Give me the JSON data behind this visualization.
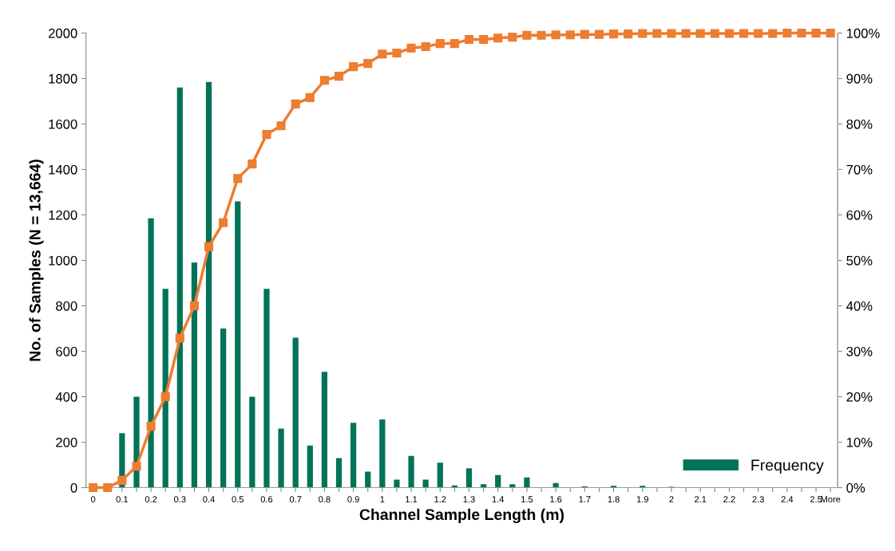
{
  "chart_data": {
    "type": "bar",
    "xlabel": "Channel Sample Length (m)",
    "ylabel": "No. of Samples (N = 13,664)",
    "categories": [
      "0",
      null,
      "0.1",
      null,
      "0.2",
      null,
      "0.3",
      null,
      "0.4",
      null,
      "0.5",
      null,
      "0.6",
      null,
      "0.7",
      null,
      "0.8",
      null,
      "0.9",
      null,
      "1",
      null,
      "1.1",
      null,
      "1.2",
      null,
      "1.3",
      null,
      "1.4",
      null,
      "1.5",
      null,
      "1.6",
      null,
      "1.7",
      null,
      "1.8",
      null,
      "1.9",
      null,
      "2",
      null,
      "2.1",
      null,
      "2.2",
      null,
      "2.3",
      null,
      "2.4",
      null,
      "2.5",
      "More"
    ],
    "series": [
      {
        "name": "Frequency",
        "color": "#007358",
        "values": [
          0,
          0,
          240,
          400,
          1185,
          875,
          1760,
          990,
          1785,
          700,
          1260,
          400,
          875,
          260,
          660,
          185,
          510,
          130,
          285,
          70,
          300,
          35,
          140,
          35,
          110,
          10,
          85,
          15,
          55,
          15,
          45,
          0,
          20,
          0,
          5,
          0,
          8,
          0,
          8,
          0,
          4,
          0,
          0,
          0,
          0,
          0,
          0,
          0,
          0,
          0,
          0,
          0
        ]
      },
      {
        "type": "line",
        "axis": "y2",
        "color": "#ed7d31",
        "marker": "square",
        "line_style": "solid",
        "values": [
          0,
          0,
          1.6,
          4.7,
          13.5,
          20,
          32.9,
          40,
          53,
          58.3,
          68,
          71.2,
          77.7,
          79.6,
          84.4,
          85.8,
          89.6,
          90.5,
          92.6,
          93.3,
          95.4,
          95.6,
          96.7,
          97,
          97.7,
          97.7,
          98.6,
          98.6,
          98.9,
          99.1,
          99.5,
          99.5,
          99.6,
          99.6,
          99.7,
          99.7,
          99.8,
          99.8,
          99.9,
          99.9,
          99.9,
          99.9,
          99.9,
          99.9,
          99.9,
          99.9,
          99.9,
          99.9,
          100,
          100,
          100,
          100
        ]
      }
    ],
    "ylim": [
      0,
      2000
    ],
    "yticks": [
      0,
      200,
      400,
      600,
      800,
      1000,
      1200,
      1400,
      1600,
      1800,
      2000
    ],
    "y2lim": [
      0,
      100
    ],
    "y2ticks": [
      {
        "value": 0,
        "label": "0%"
      },
      {
        "value": 10,
        "label": "10%"
      },
      {
        "value": 20,
        "label": "20%"
      },
      {
        "value": 30,
        "label": "30%"
      },
      {
        "value": 40,
        "label": "40%"
      },
      {
        "value": 50,
        "label": "50%"
      },
      {
        "value": 60,
        "label": "60%"
      },
      {
        "value": 70,
        "label": "70%"
      },
      {
        "value": 80,
        "label": "80%"
      },
      {
        "value": 90,
        "label": "90%"
      },
      {
        "value": 100,
        "label": "100%"
      }
    ],
    "grid": false,
    "legend": "bottom right"
  }
}
